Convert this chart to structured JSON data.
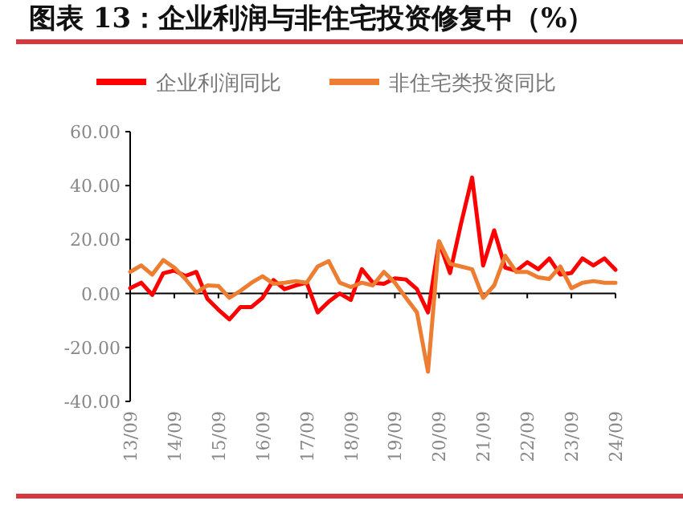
{
  "chart_data": {
    "type": "line",
    "title": "图表 13：企业利润与非住宅投资修复中（%）",
    "categories": [
      "13/09",
      null,
      null,
      null,
      "14/09",
      null,
      null,
      null,
      "15/09",
      null,
      null,
      null,
      "16/09",
      null,
      null,
      null,
      "17/09",
      null,
      null,
      null,
      "18/09",
      null,
      null,
      null,
      "19/09",
      null,
      null,
      null,
      "20/09",
      null,
      null,
      null,
      "21/09",
      null,
      null,
      null,
      "22/09",
      null,
      null,
      null,
      "23/09",
      null,
      null,
      null,
      "24/09"
    ],
    "series": [
      {
        "name": "企业利润同比",
        "color": "#ff0000",
        "values": [
          2,
          4,
          -0.5,
          7.5,
          8.5,
          6.5,
          8,
          -2,
          -6,
          -9.6,
          -5,
          -5,
          -1.6,
          5,
          1.6,
          3,
          4,
          -7,
          -3,
          0,
          -2.4,
          9,
          4,
          3.6,
          5.6,
          5.2,
          1.6,
          -7,
          19,
          7.6,
          26,
          43,
          10.4,
          23.4,
          9.6,
          8.4,
          11.6,
          9,
          13,
          7,
          7.6,
          13,
          10.4,
          13,
          8.8
        ]
      },
      {
        "name": "非住宅类投资同比",
        "color": "#ed7d31",
        "values": [
          8,
          10.4,
          7,
          12.4,
          9.6,
          5.4,
          0.4,
          3,
          2.8,
          -1.6,
          1,
          4,
          6.4,
          3.6,
          4,
          4.6,
          4,
          10,
          12,
          4,
          2.4,
          4,
          3,
          8,
          4,
          -1.6,
          -7,
          -29,
          19.4,
          11,
          10,
          9,
          -1.6,
          3,
          14,
          8,
          8,
          6,
          5.4,
          10,
          2,
          4,
          4.6,
          4,
          4
        ]
      }
    ],
    "ylim": [
      -40,
      60
    ],
    "yticks": [
      {
        "value": -40,
        "label": "-40.00"
      },
      {
        "value": -20,
        "label": "-20.00"
      },
      {
        "value": 0,
        "label": "0.00"
      },
      {
        "value": 20,
        "label": "20.00"
      },
      {
        "value": 40,
        "label": "40.00"
      },
      {
        "value": 60,
        "label": "60.00"
      }
    ],
    "legend": "top",
    "marker": "none",
    "line_style": "solid"
  }
}
